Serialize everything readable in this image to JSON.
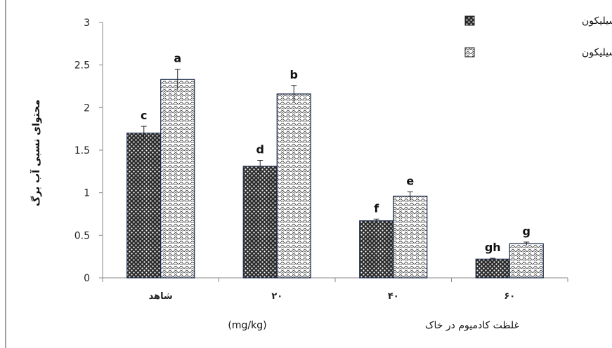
{
  "chart_data": {
    "type": "bar",
    "categories": [
      "شاهد",
      "۲۰",
      "۴۰",
      "۶۰"
    ],
    "series": [
      {
        "name": "عدم کاربرد سیلیکون",
        "values": [
          1.7,
          1.31,
          0.67,
          0.22
        ],
        "errors": [
          0.08,
          0.07,
          0.02,
          0.01
        ],
        "letters": [
          "c",
          "d",
          "f",
          "gh"
        ],
        "color": "#1a1a1a",
        "pattern": "dots"
      },
      {
        "name": "کاربرد سیلیکون",
        "values": [
          2.33,
          2.16,
          0.96,
          0.4
        ],
        "errors": [
          0.12,
          0.1,
          0.05,
          0.02
        ],
        "letters": [
          "a",
          "b",
          "e",
          "g"
        ],
        "color": "#6a6a6a",
        "pattern": "waves"
      }
    ],
    "yticks": [
      "0",
      "0.5",
      "1",
      "1.5",
      "2",
      "2.5",
      "3"
    ],
    "ylim": [
      0,
      3
    ],
    "ylabel": "محتوای نسبی آب برگ",
    "xlabel": "غلظت کادمیوم در خاک",
    "xlabel_unit": "(mg/kg)",
    "grid": false,
    "legend_position": "top-right"
  }
}
